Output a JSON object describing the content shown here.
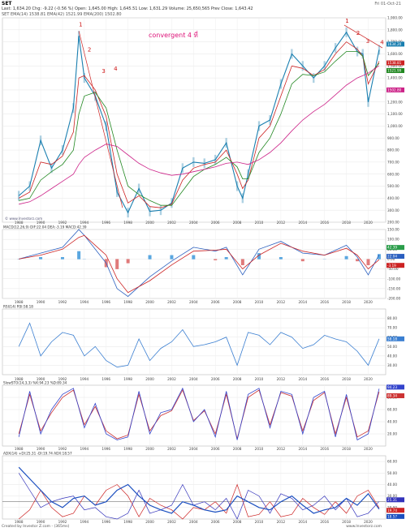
{
  "header": {
    "symbol": "SET",
    "date": "Fri 01-Oct-21",
    "quote": "Last: 1,634.20  Chg: -9.22 (-0.56 %)  Open: 1,645.00  High: 1,645.51  Low: 1,631.29  Volume: 25,650,565  Prev Close: 1,643.42",
    "indicators": "SET   EMA(14)  1538.81   EMA(42)  1521.99   EMA(200)  1502.80"
  },
  "annotation": "convergent 4 ที่",
  "watermark": "© www.Investorz.com",
  "footer_left": "Created by Investor Z.com - (365ms)",
  "footer_right": "www.Investorz.com",
  "wave_labels": [
    "1",
    "2",
    "3",
    "4",
    "1",
    "2",
    "3",
    "4"
  ],
  "colors": {
    "price": "#1a7fb0",
    "ema_fast": "#cc2222",
    "ema_mid": "#228822",
    "ema_slow": "#cc2288",
    "rsi": "#3b7fd1",
    "stoch_k": "#3344cc",
    "stoch_d": "#cc3333",
    "adx": "#1b4fc0",
    "di_plus": "#3333bb",
    "di_minus": "#cc2222"
  },
  "chart_data": [
    {
      "type": "line",
      "panel": "price",
      "x": [
        1988,
        1989,
        1990,
        1991,
        1992,
        1993,
        1993.5,
        1994,
        1995,
        1996,
        1997,
        1998,
        1999,
        2000,
        2001,
        2002,
        2003,
        2004,
        2005,
        2006,
        2007,
        2008,
        2008.5,
        2009,
        2010,
        2011,
        2012,
        2013,
        2014,
        2015,
        2016,
        2017,
        2018,
        2019,
        2019.5,
        2020,
        2021
      ],
      "series": [
        {
          "name": "SET",
          "values": [
            420,
            500,
            880,
            650,
            800,
            1150,
            1750,
            1400,
            1250,
            1000,
            450,
            280,
            480,
            290,
            300,
            360,
            650,
            700,
            690,
            720,
            860,
            500,
            400,
            600,
            1000,
            1050,
            1350,
            1600,
            1500,
            1400,
            1500,
            1650,
            1780,
            1620,
            1600,
            1200,
            1634
          ]
        },
        {
          "name": "EMA(14)",
          "values": [
            400,
            450,
            700,
            680,
            750,
            950,
            1400,
            1420,
            1300,
            1080,
            600,
            360,
            420,
            330,
            320,
            350,
            550,
            650,
            680,
            700,
            800,
            600,
            480,
            550,
            900,
            1000,
            1250,
            1500,
            1480,
            1420,
            1470,
            1600,
            1700,
            1640,
            1580,
            1350,
            1538.81
          ]
        },
        {
          "name": "EMA(42)",
          "values": [
            380,
            400,
            550,
            620,
            680,
            800,
            1100,
            1250,
            1280,
            1150,
            800,
            500,
            430,
            380,
            340,
            340,
            460,
            580,
            640,
            680,
            740,
            660,
            560,
            560,
            780,
            900,
            1100,
            1350,
            1430,
            1420,
            1450,
            1540,
            1620,
            1620,
            1580,
            1420,
            1521.99
          ]
        },
        {
          "name": "EMA(200)",
          "values": [
            350,
            370,
            420,
            480,
            540,
            600,
            680,
            740,
            800,
            850,
            830,
            760,
            690,
            640,
            610,
            590,
            600,
            620,
            640,
            660,
            690,
            700,
            690,
            680,
            720,
            780,
            860,
            960,
            1050,
            1120,
            1180,
            1260,
            1340,
            1400,
            1420,
            1440,
            1502.8
          ]
        }
      ],
      "ylim": [
        200,
        1900
      ],
      "yticks": [
        "1,900.00",
        "1,800.00",
        "1,700.00",
        "1,600.00",
        "1,500.00",
        "1,400.00",
        "1,300.00",
        "1,200.00",
        "1,100.00",
        "1,000.00",
        "900.00",
        "800.00",
        "700.00",
        "600.00",
        "500.00",
        "400.00",
        "300.00",
        "200.00"
      ],
      "value_labels": [
        "1634.20",
        "1538.81",
        "1521.99",
        "1502.80"
      ],
      "xticks": [
        "1988",
        "1990",
        "1992",
        "1994",
        "1996",
        "1998",
        "2000",
        "2002",
        "2004",
        "2006",
        "2008",
        "2010",
        "2012",
        "2014",
        "2016",
        "2018",
        "2020"
      ]
    },
    {
      "type": "bar",
      "panel": "macd",
      "label": "MACD(12,26,9)   DIF:22.04   DEA:-3.19   MACD:42.39",
      "x": [
        1988,
        1990,
        1992,
        1993.5,
        1994,
        1996,
        1997,
        1998,
        2000,
        2002,
        2004,
        2006,
        2007,
        2008.5,
        2010,
        2012,
        2014,
        2016,
        2018,
        2019,
        2020,
        2021
      ],
      "dif": [
        0,
        30,
        60,
        150,
        120,
        -20,
        -150,
        -190,
        -90,
        -10,
        60,
        40,
        60,
        -80,
        50,
        90,
        30,
        20,
        70,
        10,
        -80,
        22.04
      ],
      "dea": [
        0,
        20,
        50,
        110,
        120,
        20,
        -100,
        -170,
        -110,
        -30,
        40,
        45,
        50,
        -50,
        20,
        80,
        40,
        20,
        55,
        20,
        -50,
        -3.19
      ],
      "ylim": [
        -200,
        150
      ],
      "yticks": [
        "150.00",
        "100.00",
        "50.00",
        "0.00",
        "-50.00",
        "-100.00",
        "-150.00",
        "-200.00"
      ],
      "value_labels": [
        "42.39",
        "22.04",
        "-3.19"
      ]
    },
    {
      "type": "line",
      "panel": "rsi",
      "label": "RSI(14)   RSI:58.18",
      "x": [
        1988,
        1989,
        1990,
        1991,
        1992,
        1993,
        1994,
        1995,
        1996,
        1997,
        1998,
        1999,
        2000,
        2001,
        2002,
        2003,
        2004,
        2005,
        2006,
        2007,
        2008,
        2009,
        2010,
        2011,
        2012,
        2013,
        2014,
        2015,
        2016,
        2017,
        2018,
        2019,
        2020,
        2021
      ],
      "series": [
        {
          "name": "RSI",
          "values": [
            50,
            75,
            40,
            55,
            65,
            62,
            40,
            50,
            35,
            28,
            30,
            58,
            35,
            48,
            55,
            68,
            50,
            52,
            55,
            60,
            30,
            65,
            62,
            52,
            65,
            60,
            48,
            52,
            62,
            58,
            55,
            45,
            30,
            58.18
          ]
        }
      ],
      "ylim": [
        20,
        90
      ],
      "yticks": [
        "80.00",
        "70.00",
        "60.00",
        "50.00",
        "40.00",
        "30.00"
      ],
      "value_labels": [
        "58.18"
      ],
      "xticks": [
        "1988",
        "1990",
        "1992",
        "1994",
        "1996",
        "1998",
        "2000",
        "2002",
        "2004",
        "2006",
        "2008",
        "2010",
        "2012",
        "2014",
        "2016",
        "2018",
        "2020"
      ]
    },
    {
      "type": "line",
      "panel": "stochastic",
      "label": "SlowSTO(14,3,3)   %K:94.23   %D:89.34",
      "x": [
        1988,
        1989,
        1990,
        1991,
        1992,
        1993,
        1994,
        1995,
        1996,
        1997,
        1998,
        1999,
        2000,
        2001,
        2002,
        2003,
        2004,
        2005,
        2006,
        2007,
        2008,
        2009,
        2010,
        2011,
        2012,
        2013,
        2014,
        2015,
        2016,
        2017,
        2018,
        2019,
        2020,
        2021
      ],
      "series": [
        {
          "name": "%K",
          "values": [
            15,
            90,
            20,
            60,
            85,
            95,
            30,
            70,
            20,
            10,
            15,
            90,
            20,
            55,
            60,
            95,
            40,
            60,
            15,
            90,
            10,
            85,
            95,
            30,
            90,
            85,
            20,
            80,
            90,
            15,
            85,
            10,
            20,
            94.23
          ]
        },
        {
          "name": "%D",
          "values": [
            20,
            85,
            25,
            55,
            80,
            92,
            35,
            65,
            25,
            12,
            18,
            85,
            25,
            50,
            58,
            92,
            42,
            58,
            20,
            85,
            12,
            80,
            92,
            35,
            88,
            82,
            25,
            75,
            88,
            20,
            80,
            15,
            25,
            89.34
          ]
        }
      ],
      "ylim": [
        0,
        100
      ],
      "yticks": [
        "80.00",
        "60.00",
        "40.00",
        "20.00"
      ],
      "value_labels": [
        "94.23",
        "89.34"
      ],
      "xticks": [
        "1988",
        "1990",
        "1992",
        "1994",
        "1996",
        "1998",
        "2000",
        "2002",
        "2004",
        "2006",
        "2008",
        "2010",
        "2012",
        "2014",
        "2016",
        "2018",
        "2020"
      ]
    },
    {
      "type": "line",
      "panel": "adx",
      "label": "ADX(14)   +DI:25.31   -DI:19.74   ADX:18.57",
      "x": [
        1988,
        1989,
        1990,
        1991,
        1992,
        1993,
        1994,
        1995,
        1996,
        1997,
        1998,
        1999,
        2000,
        2001,
        2002,
        2003,
        2004,
        2005,
        2006,
        2007,
        2008,
        2009,
        2010,
        2011,
        2012,
        2013,
        2014,
        2015,
        2016,
        2017,
        2018,
        2019,
        2020,
        2021
      ],
      "series": [
        {
          "name": "ADX",
          "values": [
            55,
            45,
            35,
            25,
            20,
            28,
            30,
            22,
            25,
            35,
            40,
            30,
            22,
            18,
            15,
            25,
            22,
            18,
            16,
            18,
            30,
            25,
            20,
            18,
            25,
            30,
            22,
            15,
            18,
            20,
            28,
            22,
            32,
            18.57
          ]
        },
        {
          "name": "+DI",
          "values": [
            50,
            35,
            20,
            25,
            28,
            30,
            18,
            20,
            12,
            10,
            15,
            35,
            15,
            18,
            22,
            40,
            22,
            25,
            18,
            28,
            10,
            35,
            30,
            15,
            32,
            28,
            18,
            22,
            30,
            18,
            28,
            12,
            15,
            25.31
          ]
        },
        {
          "name": "-DI",
          "values": [
            10,
            18,
            35,
            20,
            12,
            15,
            30,
            22,
            35,
            40,
            30,
            12,
            28,
            22,
            18,
            10,
            20,
            18,
            25,
            15,
            40,
            12,
            14,
            25,
            12,
            14,
            28,
            20,
            14,
            25,
            15,
            30,
            35,
            19.74
          ]
        }
      ],
      "ylim": [
        10,
        65
      ],
      "yticks": [
        "60.00",
        "50.00",
        "40.00",
        "30.00",
        "20.00"
      ],
      "value_labels": [
        "25.31",
        "19.74",
        "18.57"
      ],
      "xticks": [
        "1988",
        "1990",
        "1992",
        "1994",
        "1996",
        "1998",
        "2000",
        "2002",
        "2004",
        "2006",
        "2008",
        "2010",
        "2012",
        "2014",
        "2016",
        "2018",
        "2020"
      ]
    }
  ]
}
